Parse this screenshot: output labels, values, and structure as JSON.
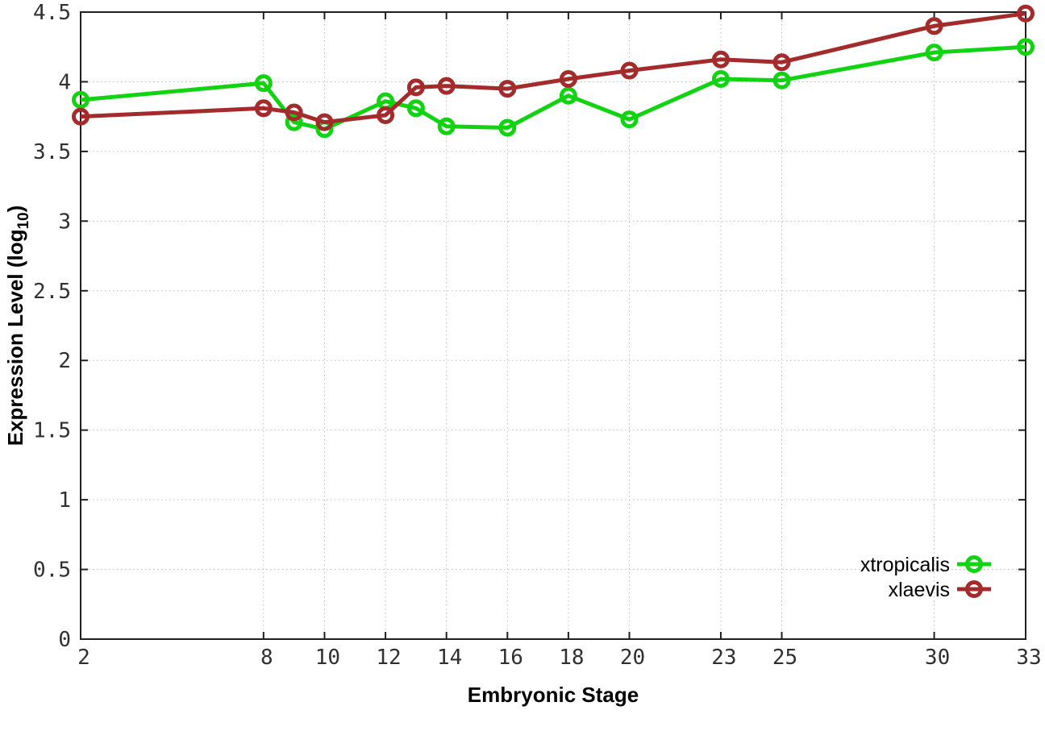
{
  "chart_data": {
    "type": "line",
    "title": "",
    "xlabel": "Embryonic Stage",
    "ylabel": "Expression Level (log10)",
    "ylabel_parts": {
      "pre": "Expression Level (log",
      "sub": "10",
      "post": ")"
    },
    "xlim": [
      2,
      33
    ],
    "ylim": [
      0,
      4.5
    ],
    "xticks": [
      2,
      8,
      10,
      12,
      14,
      16,
      18,
      20,
      23,
      25,
      30,
      33
    ],
    "yticks": [
      0,
      0.5,
      1,
      1.5,
      2,
      2.5,
      3,
      3.5,
      4,
      4.5
    ],
    "grid": true,
    "legend_position": "bottom-right",
    "x": [
      2,
      8,
      9,
      10,
      12,
      13,
      14,
      16,
      18,
      20,
      23,
      25,
      30,
      33
    ],
    "series": [
      {
        "name": "xtropicalis",
        "color": "#12d312",
        "values": [
          3.87,
          3.99,
          3.71,
          3.66,
          3.86,
          3.81,
          3.68,
          3.67,
          3.9,
          3.73,
          4.02,
          4.01,
          4.21,
          4.25
        ]
      },
      {
        "name": "xlaevis",
        "color": "#a32b2b",
        "values": [
          3.75,
          3.81,
          3.78,
          3.71,
          3.76,
          3.96,
          3.97,
          3.95,
          4.02,
          4.08,
          4.16,
          4.14,
          4.4,
          4.49
        ]
      }
    ],
    "colors": {
      "axis": "#202020",
      "grid": "#bdbdbd",
      "tick_label": "#303030",
      "background": "#ffffff"
    }
  }
}
